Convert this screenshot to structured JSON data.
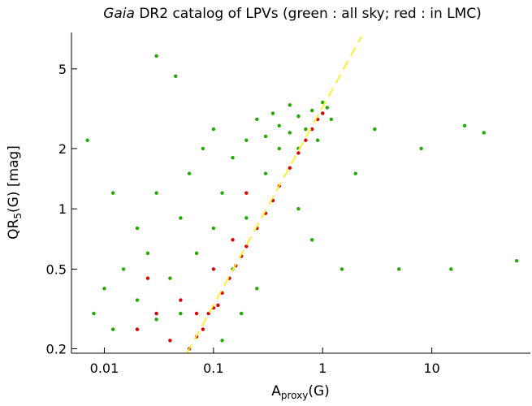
{
  "chart_data": {
    "type": "scatter",
    "title_italic": "Gaia",
    "title": " DR2 catalog of LPVs (green : all sky; red : in LMC)",
    "xlabel": {
      "main": "A",
      "sub": "proxy",
      "rest": "(G)"
    },
    "ylabel": {
      "main": "QR",
      "sub": "5",
      "rest": "(G)  [mag]"
    },
    "xscale": "log",
    "yscale": "log",
    "xlim": [
      0.005,
      80
    ],
    "ylim": [
      0.19,
      7.6
    ],
    "xticks": [
      0.01,
      0.1,
      1,
      10
    ],
    "yticks": [
      0.2,
      0.5,
      1,
      2,
      5
    ],
    "series": [
      {
        "color": "#1faa00",
        "x": [
          0.008,
          0.01,
          0.012,
          0.015,
          0.02,
          0.02,
          0.025,
          0.03,
          0.03,
          0.04,
          0.05,
          0.05,
          0.06,
          0.07,
          0.08,
          0.1,
          0.1,
          0.12,
          0.15,
          0.15,
          0.2,
          0.2,
          0.25,
          0.3,
          0.3,
          0.35,
          0.4,
          0.4,
          0.5,
          0.5,
          0.6,
          0.6,
          0.7,
          0.8,
          0.9,
          1.0,
          1.2,
          1.1,
          0.6,
          0.8,
          1.5,
          2,
          3,
          5,
          8,
          15,
          20,
          30,
          60,
          0.03,
          0.012,
          0.007,
          0.045,
          0.18,
          0.25,
          0.12
        ],
        "values": [
          0.3,
          0.4,
          0.25,
          0.5,
          0.35,
          0.8,
          0.6,
          0.28,
          1.2,
          0.45,
          0.9,
          0.3,
          1.5,
          0.6,
          2.0,
          0.8,
          2.5,
          1.2,
          0.5,
          1.8,
          2.2,
          0.9,
          2.8,
          1.5,
          2.3,
          3.0,
          2.0,
          2.6,
          2.4,
          3.3,
          2.0,
          2.9,
          2.5,
          3.1,
          2.2,
          3.4,
          2.8,
          3.2,
          1.0,
          0.7,
          0.5,
          1.5,
          2.5,
          0.5,
          2.0,
          0.5,
          2.6,
          2.4,
          0.55,
          5.8,
          1.2,
          2.2,
          4.6,
          0.3,
          0.4,
          0.22
        ]
      },
      {
        "color": "#dd0000",
        "x": [
          0.06,
          0.07,
          0.08,
          0.09,
          0.1,
          0.12,
          0.14,
          0.16,
          0.18,
          0.2,
          0.25,
          0.3,
          0.35,
          0.4,
          0.5,
          0.6,
          0.7,
          0.8,
          0.9,
          1.0,
          0.02,
          0.03,
          0.04,
          0.05,
          0.025,
          0.15,
          0.1,
          0.2,
          0.07,
          0.11
        ],
        "values": [
          0.2,
          0.23,
          0.25,
          0.3,
          0.32,
          0.38,
          0.45,
          0.52,
          0.58,
          0.65,
          0.8,
          0.95,
          1.1,
          1.3,
          1.6,
          1.9,
          2.2,
          2.5,
          2.8,
          3.0,
          0.25,
          0.3,
          0.22,
          0.35,
          0.45,
          0.7,
          0.5,
          1.2,
          0.3,
          0.33
        ]
      },
      {
        "color": "#ffee33",
        "style": "dashed",
        "x": [
          0.057,
          2.27
        ],
        "values": [
          0.19,
          7.27
        ]
      }
    ]
  }
}
